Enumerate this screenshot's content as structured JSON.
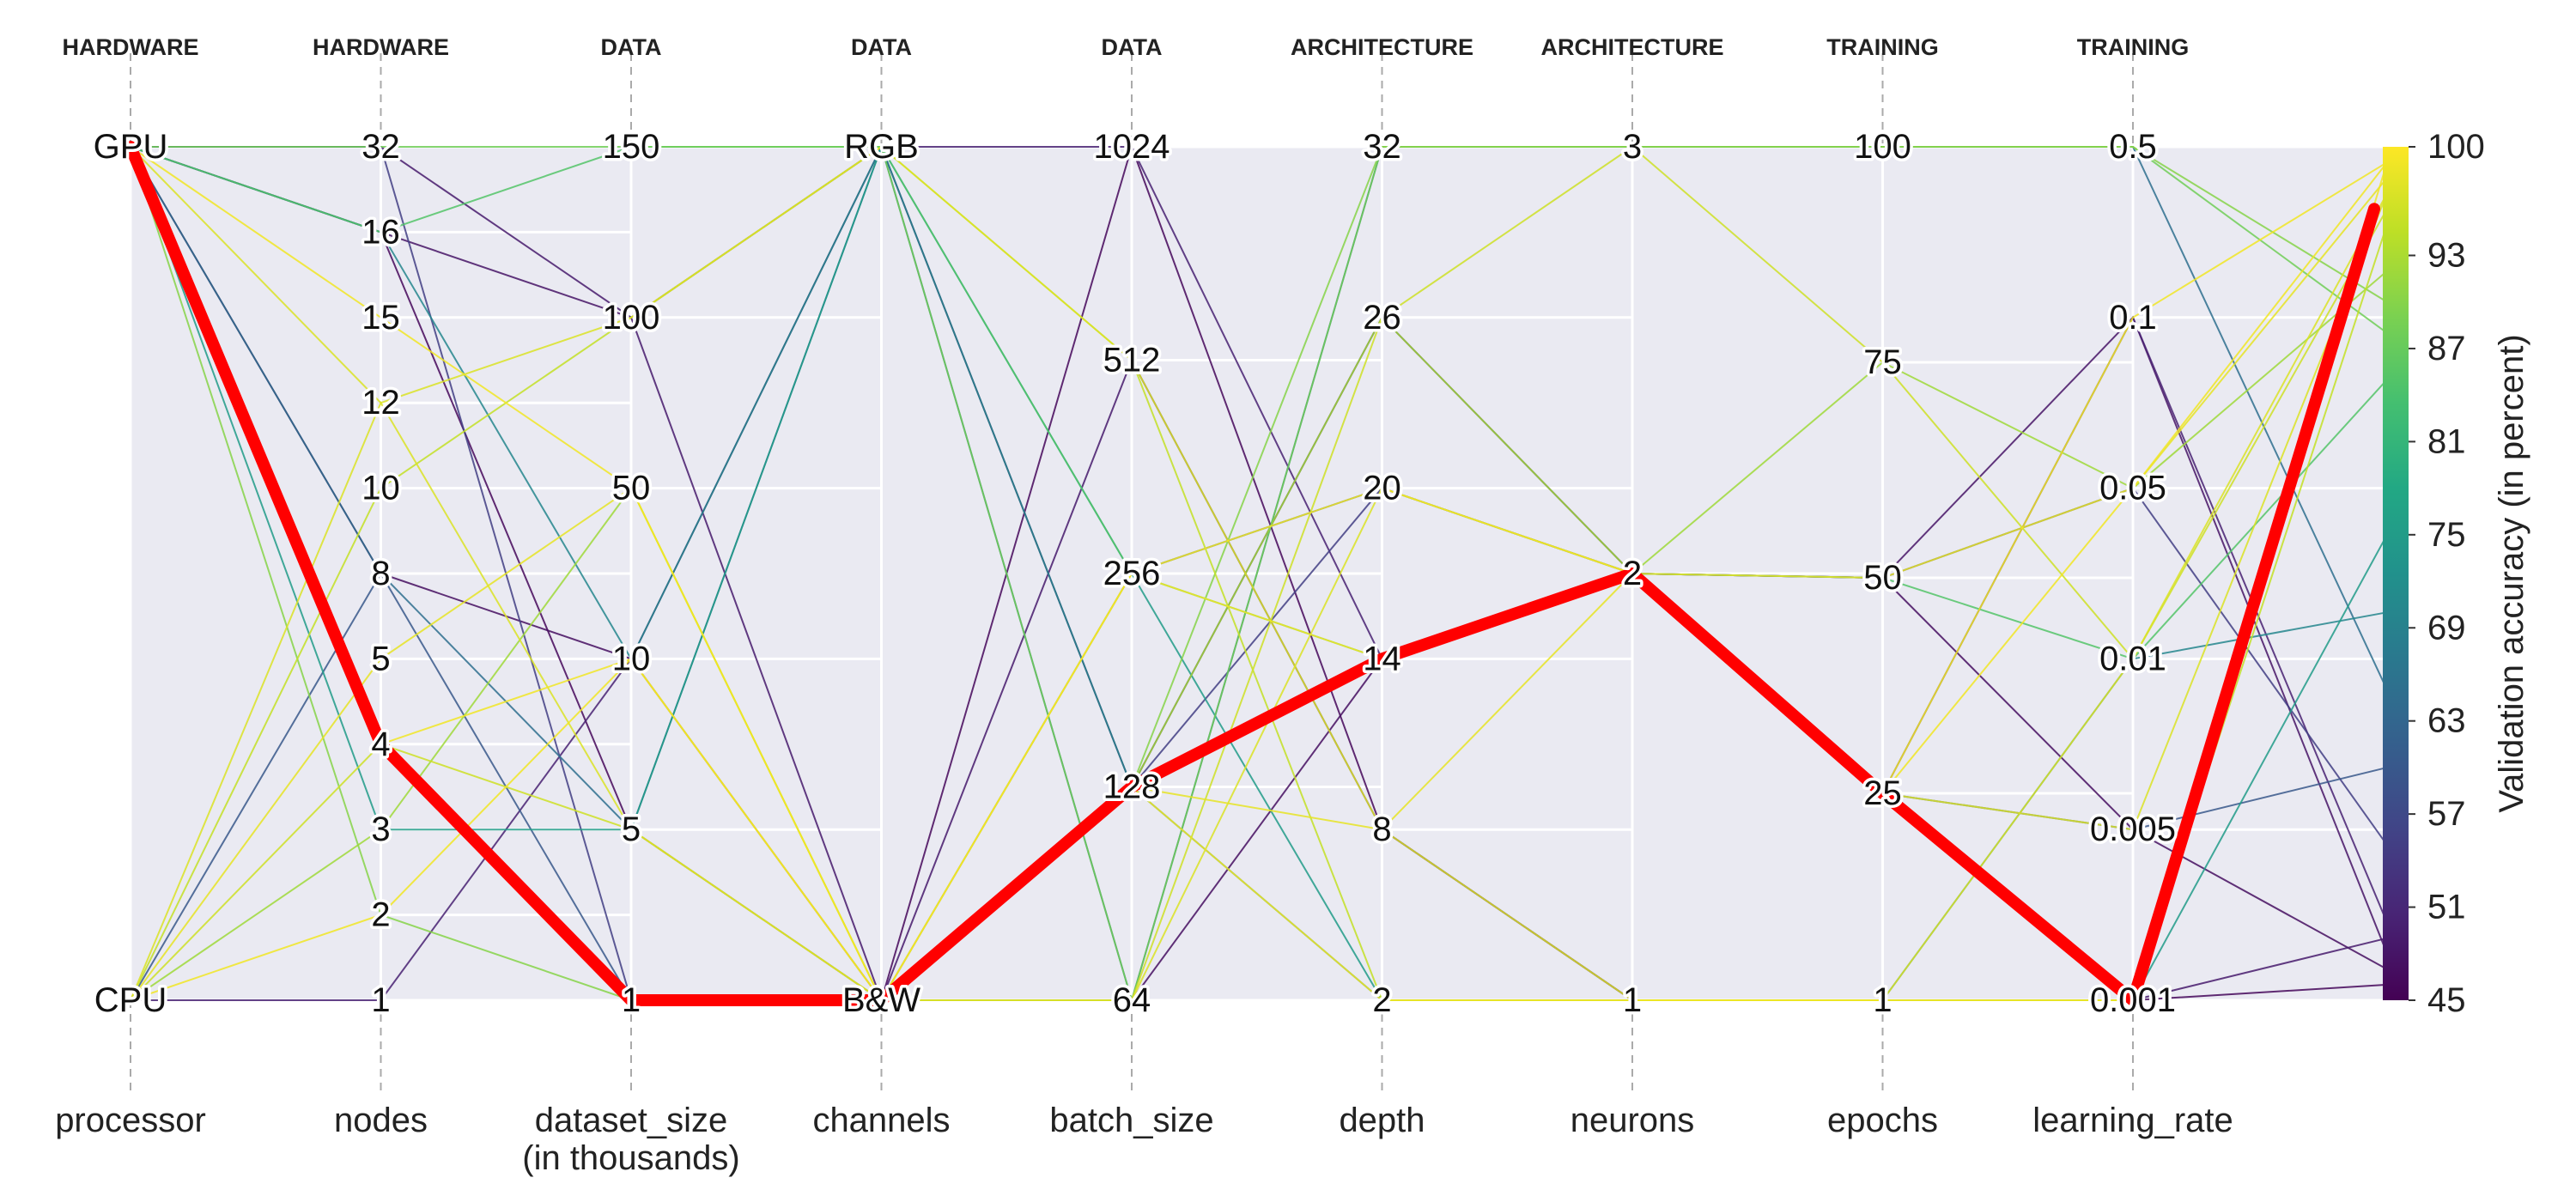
{
  "chart_data": {
    "type": "parallel_coordinates",
    "plot_background": "#eaeaf2",
    "grid": true,
    "axes": [
      {
        "group": "HARDWARE",
        "name": "processor",
        "kind": "categorical",
        "ticks": [
          "CPU",
          "GPU"
        ]
      },
      {
        "group": "HARDWARE",
        "name": "nodes",
        "kind": "categorical",
        "ticks": [
          "1",
          "2",
          "3",
          "4",
          "5",
          "8",
          "10",
          "12",
          "15",
          "16",
          "32"
        ]
      },
      {
        "group": "DATA",
        "name": "dataset_size",
        "name_line2": "(in thousands)",
        "kind": "categorical",
        "ticks": [
          "1",
          "5",
          "10",
          "50",
          "100",
          "150"
        ]
      },
      {
        "group": "DATA",
        "name": "channels",
        "kind": "categorical",
        "ticks": [
          "B&W",
          "RGB"
        ]
      },
      {
        "group": "DATA",
        "name": "batch_size",
        "kind": "categorical",
        "ticks": [
          "64",
          "128",
          "256",
          "512",
          "1024"
        ]
      },
      {
        "group": "ARCHITECTURE",
        "name": "depth",
        "kind": "categorical",
        "ticks": [
          "2",
          "8",
          "14",
          "20",
          "26",
          "32"
        ]
      },
      {
        "group": "ARCHITECTURE",
        "name": "neurons",
        "kind": "categorical",
        "ticks": [
          "1",
          "2",
          "3"
        ]
      },
      {
        "group": "TRAINING",
        "name": "epochs",
        "kind": "linear",
        "range": [
          1,
          100
        ],
        "ticks": [
          "1",
          "25",
          "50",
          "75",
          "100"
        ]
      },
      {
        "group": "TRAINING",
        "name": "learning_rate",
        "kind": "categorical",
        "ticks": [
          "0.001",
          "0.005",
          "0.01",
          "0.05",
          "0.1",
          "0.5"
        ]
      }
    ],
    "colorbar": {
      "label": "Validation accuracy (in percent)",
      "range": [
        45,
        100
      ],
      "ticks": [
        "45",
        "51",
        "57",
        "63",
        "69",
        "75",
        "81",
        "87",
        "93",
        "100"
      ],
      "colormap": "viridis"
    },
    "highlighted_line": {
      "color": "#ff0000",
      "values": [
        "GPU",
        "4",
        "1",
        "B&W",
        "128",
        "14",
        "2",
        "25",
        "0.001"
      ],
      "accuracy": 96
    },
    "lines": [
      {
        "values": [
          "GPU",
          "32",
          "150",
          "RGB",
          "64",
          "32",
          "3",
          "100",
          "0.5"
        ],
        "accuracy": 88
      },
      {
        "values": [
          "GPU",
          "16",
          "100",
          "RGB",
          "128",
          "26",
          "2",
          "50",
          "0.1"
        ],
        "accuracy": 48
      },
      {
        "values": [
          "GPU",
          "15",
          "50",
          "B&W",
          "256",
          "20",
          "2",
          "25",
          "0.05"
        ],
        "accuracy": 99
      },
      {
        "values": [
          "GPU",
          "12",
          "100",
          "RGB",
          "512",
          "8",
          "1",
          "1",
          "0.01"
        ],
        "accuracy": 97
      },
      {
        "values": [
          "GPU",
          "8",
          "10",
          "B&W",
          "64",
          "14",
          "2",
          "50",
          "0.005"
        ],
        "accuracy": 47
      },
      {
        "values": [
          "GPU",
          "3",
          "5",
          "RGB",
          "256",
          "2",
          "1",
          "1",
          "0.001"
        ],
        "accuracy": 75
      },
      {
        "values": [
          "GPU",
          "2",
          "1",
          "B&W",
          "128",
          "32",
          "3",
          "100",
          "0.5"
        ],
        "accuracy": 90
      },
      {
        "values": [
          "CPU",
          "1",
          "10",
          "RGB",
          "1024",
          "14",
          "2",
          "25",
          "0.1"
        ],
        "accuracy": 50
      },
      {
        "values": [
          "CPU",
          "5",
          "50",
          "B&W",
          "128",
          "8",
          "2",
          "50",
          "0.05"
        ],
        "accuracy": 98
      },
      {
        "values": [
          "CPU",
          "10",
          "100",
          "RGB",
          "512",
          "2",
          "1",
          "1",
          "0.001"
        ],
        "accuracy": 95
      },
      {
        "values": [
          "CPU",
          "4",
          "5",
          "B&W",
          "64",
          "26",
          "3",
          "75",
          "0.01"
        ],
        "accuracy": 96
      },
      {
        "values": [
          "CPU",
          "8",
          "1",
          "B&W",
          "256",
          "20",
          "2",
          "25",
          "0.005"
        ],
        "accuracy": 60
      },
      {
        "values": [
          "GPU",
          "16",
          "5",
          "B&W",
          "1024",
          "8",
          "1",
          "1",
          "0.001"
        ],
        "accuracy": 46
      },
      {
        "values": [
          "GPU",
          "32",
          "1",
          "B&W",
          "128",
          "20",
          "2",
          "50",
          "0.05"
        ],
        "accuracy": 55
      },
      {
        "values": [
          "GPU",
          "16",
          "10",
          "RGB",
          "128",
          "2",
          "1",
          "1",
          "0.01"
        ],
        "accuracy": 70
      },
      {
        "values": [
          "CPU",
          "2",
          "10",
          "B&W",
          "256",
          "14",
          "2",
          "25",
          "0.1"
        ],
        "accuracy": 99
      },
      {
        "values": [
          "GPU",
          "8",
          "5",
          "RGB",
          "64",
          "32",
          "3",
          "100",
          "0.5"
        ],
        "accuracy": 65
      },
      {
        "values": [
          "CPU",
          "3",
          "50",
          "B&W",
          "128",
          "26",
          "2",
          "75",
          "0.05"
        ],
        "accuracy": 92
      },
      {
        "values": [
          "GPU",
          "32",
          "100",
          "B&W",
          "512",
          "8",
          "1",
          "1",
          "0.001"
        ],
        "accuracy": 49
      },
      {
        "values": [
          "GPU",
          "16",
          "150",
          "RGB",
          "256",
          "14",
          "2",
          "50",
          "0.01"
        ],
        "accuracy": 85
      },
      {
        "values": [
          "CPU",
          "12",
          "5",
          "B&W",
          "64",
          "20",
          "2",
          "25",
          "0.005"
        ],
        "accuracy": 97
      },
      {
        "values": [
          "GPU",
          "4",
          "10",
          "B&W",
          "128",
          "2",
          "1",
          "1",
          "0.001"
        ],
        "accuracy": 99
      }
    ]
  }
}
